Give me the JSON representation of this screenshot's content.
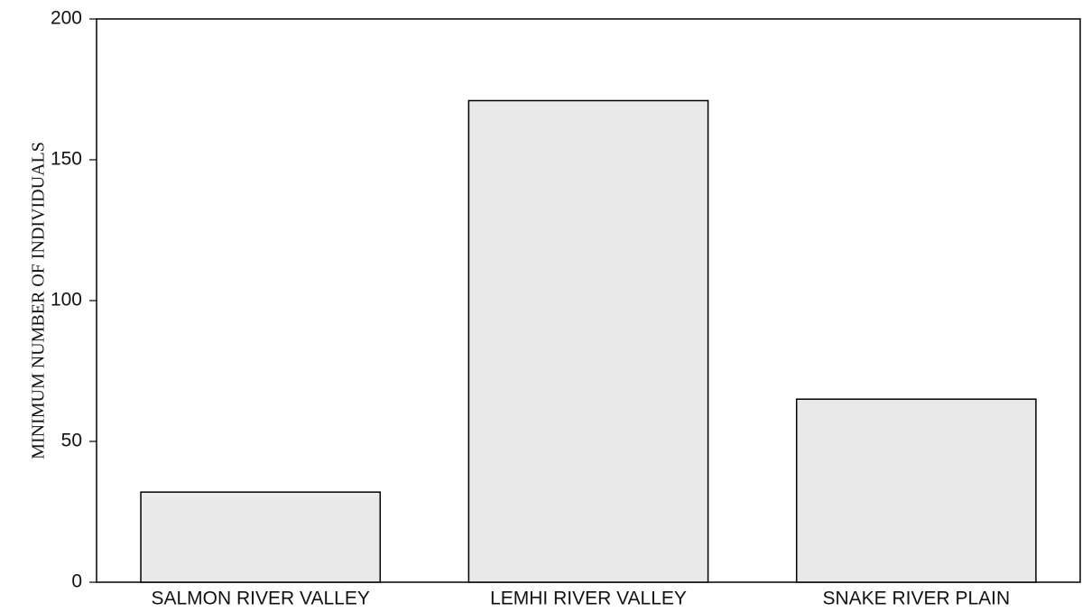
{
  "chart_data": {
    "type": "bar",
    "y_label": "MINIMUM NUMBER OF INDIVIDUALS",
    "categories": [
      "SALMON RIVER VALLEY",
      "LEMHI RIVER VALLEY",
      "SNAKE RIVER PLAIN"
    ],
    "values": [
      32,
      171,
      65
    ],
    "color": "#e9e9e9",
    "ylim": [
      0,
      200
    ],
    "yticks": [
      0,
      50,
      100,
      150,
      200
    ],
    "grid": false
  }
}
